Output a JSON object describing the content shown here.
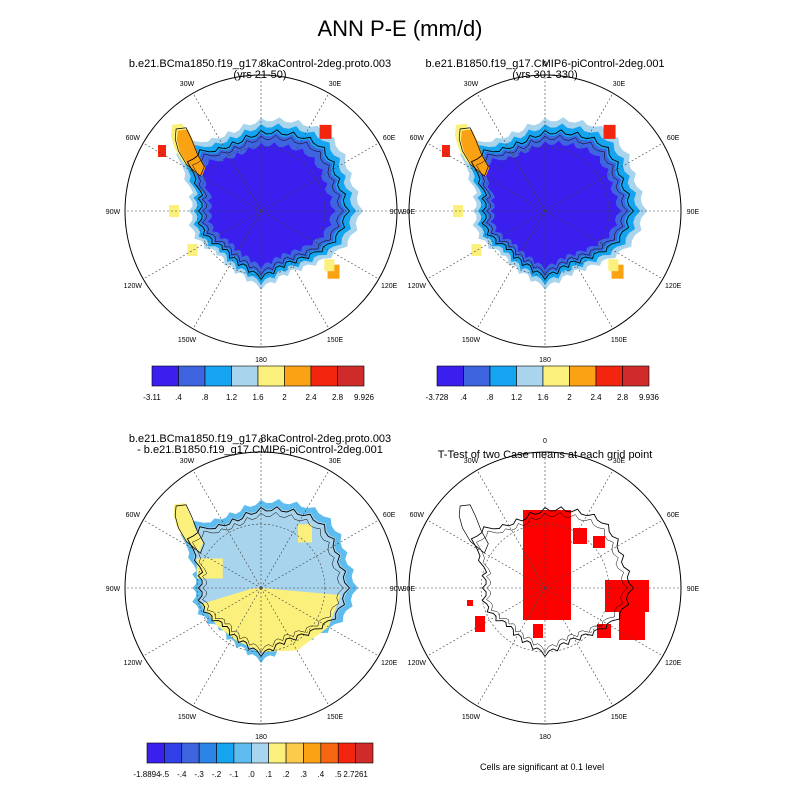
{
  "figure": {
    "title": "ANN P-E (mm/d)"
  },
  "panels": [
    {
      "id": "case1",
      "title_lines": [
        "b.e21.BCma1850.f19_g17.8kaControl-2deg.proto.003",
        "(yrs 21-50)"
      ]
    },
    {
      "id": "case2",
      "title_lines": [
        "b.e21.B1850.f19_g17.CMIP6-piControl-2deg.001",
        "(yrs 301-330)"
      ]
    },
    {
      "id": "diff",
      "title_lines": [
        "b.e21.BCma1850.f19_g17.8kaControl-2deg.proto.003",
        "- b.e21.B1850.f19_g17.CMIP6-piControl-2deg.001"
      ]
    },
    {
      "id": "ttest",
      "title_lines": [
        "T-Test of two Case means at each grid point"
      ]
    }
  ],
  "longitude_labels": [
    "0",
    "30E",
    "60E",
    "90E",
    "120E",
    "150E",
    "180",
    "150W",
    "120W",
    "90W",
    "60W",
    "30W"
  ],
  "colorbars": [
    {
      "id": "cb1",
      "labels": [
        "-3.11",
        ".4",
        ".8",
        "1.2",
        "1.6",
        "2",
        "2.4",
        "2.8",
        "9.926"
      ],
      "colors": [
        "#3a1fef",
        "#3e64e0",
        "#15a4ef",
        "#a8d4ee",
        "#fbf07c",
        "#fba214",
        "#f4250f",
        "#cf2b2b"
      ]
    },
    {
      "id": "cb2",
      "labels": [
        "-3.728",
        ".4",
        ".8",
        "1.2",
        "1.6",
        "2",
        "2.4",
        "2.8",
        "9.936"
      ],
      "colors": [
        "#3a1fef",
        "#3e64e0",
        "#15a4ef",
        "#a8d4ee",
        "#fbf07c",
        "#fba214",
        "#f4250f",
        "#cf2b2b"
      ]
    },
    {
      "id": "cb3",
      "labels": [
        "-1.8894",
        "-.5",
        "-.4",
        "-.3",
        "-.2",
        "-.1",
        ".0",
        ".1",
        ".2",
        ".3",
        ".4",
        ".5",
        "2.7261"
      ],
      "colors": [
        "#3a1fef",
        "#3140e8",
        "#3e64e0",
        "#2a85e6",
        "#15a4ef",
        "#5fbcee",
        "#a8d4ee",
        "#fbf07c",
        "#fdcb4c",
        "#fba214",
        "#f66611",
        "#f4250f",
        "#cf2b2b"
      ]
    }
  ],
  "footnote": "Cells are significant at 0.1 level"
}
